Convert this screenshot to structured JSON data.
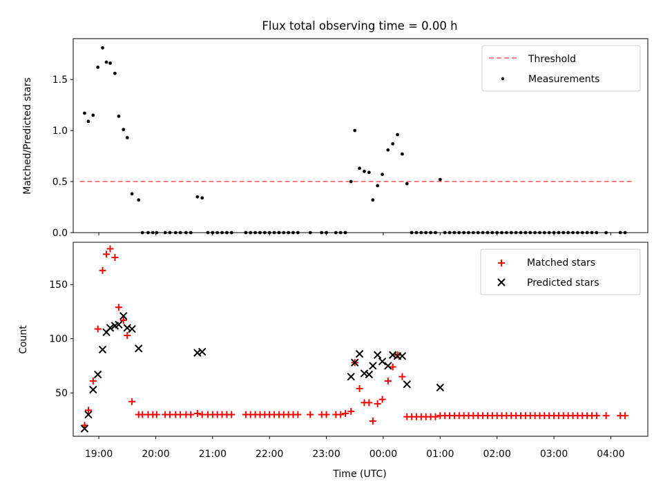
{
  "figure": {
    "title": "Flux total observing time = 0.00 h",
    "xlabel": "Time (UTC)"
  },
  "chart_data": [
    {
      "type": "scatter",
      "ylabel": "Matched/Predicted stars",
      "xlim": [
        "18:33",
        "04:39"
      ],
      "ylim": [
        0,
        1.9
      ],
      "yticks": [
        0.0,
        0.5,
        1.0,
        1.5
      ],
      "ytick_labels": [
        "0.0",
        "0.5",
        "1.0",
        "1.5"
      ],
      "xticks": [
        "19:00",
        "20:00",
        "21:00",
        "22:00",
        "23:00",
        "00:00",
        "01:00",
        "02:00",
        "03:00",
        "04:00"
      ],
      "legend": {
        "position": "upper right",
        "entries": [
          "Threshold",
          "Measurements"
        ]
      },
      "grid": false,
      "series": [
        {
          "name": "Threshold",
          "style": "dashed-line",
          "color": "#ff7f7f",
          "points": [
            [
              "18:40",
              0.5
            ],
            [
              "04:25",
              0.5
            ]
          ]
        },
        {
          "name": "Measurements",
          "style": "dot",
          "color": "#000000",
          "points": [
            [
              "18:45",
              1.17
            ],
            [
              "18:49",
              1.09
            ],
            [
              "18:54",
              1.15
            ],
            [
              "18:59",
              1.62
            ],
            [
              "19:04",
              1.81
            ],
            [
              "19:08",
              1.67
            ],
            [
              "19:12",
              1.66
            ],
            [
              "19:17",
              1.56
            ],
            [
              "19:21",
              1.14
            ],
            [
              "19:26",
              1.01
            ],
            [
              "19:30",
              0.93
            ],
            [
              "19:35",
              0.38
            ],
            [
              "19:42",
              0.32
            ],
            [
              "19:46",
              0.0
            ],
            [
              "19:52",
              0.0
            ],
            [
              "19:57",
              0.0
            ],
            [
              "20:01",
              0.0
            ],
            [
              "20:10",
              0.0
            ],
            [
              "20:15",
              0.0
            ],
            [
              "20:21",
              0.0
            ],
            [
              "20:26",
              0.0
            ],
            [
              "20:32",
              0.0
            ],
            [
              "20:37",
              0.0
            ],
            [
              "20:44",
              0.35
            ],
            [
              "20:49",
              0.34
            ],
            [
              "20:55",
              0.0
            ],
            [
              "21:00",
              0.0
            ],
            [
              "21:05",
              0.0
            ],
            [
              "21:10",
              0.0
            ],
            [
              "21:15",
              0.0
            ],
            [
              "21:20",
              0.0
            ],
            [
              "21:35",
              0.0
            ],
            [
              "21:40",
              0.0
            ],
            [
              "21:45",
              0.0
            ],
            [
              "21:50",
              0.0
            ],
            [
              "21:55",
              0.0
            ],
            [
              "22:00",
              0.0
            ],
            [
              "22:05",
              0.0
            ],
            [
              "22:10",
              0.0
            ],
            [
              "22:15",
              0.0
            ],
            [
              "22:20",
              0.0
            ],
            [
              "22:25",
              0.0
            ],
            [
              "22:30",
              0.0
            ],
            [
              "22:43",
              0.0
            ],
            [
              "22:55",
              0.0
            ],
            [
              "23:00",
              0.0
            ],
            [
              "23:10",
              0.0
            ],
            [
              "23:15",
              0.0
            ],
            [
              "23:20",
              0.0
            ],
            [
              "23:26",
              0.5
            ],
            [
              "23:30",
              1.0
            ],
            [
              "23:35",
              0.63
            ],
            [
              "23:40",
              0.6
            ],
            [
              "23:45",
              0.59
            ],
            [
              "23:49",
              0.32
            ],
            [
              "23:54",
              0.46
            ],
            [
              "23:59",
              0.57
            ],
            [
              "00:05",
              0.81
            ],
            [
              "00:10",
              0.87
            ],
            [
              "00:15",
              0.96
            ],
            [
              "00:20",
              0.77
            ],
            [
              "00:25",
              0.48
            ],
            [
              "00:30",
              0.0
            ],
            [
              "00:35",
              0.0
            ],
            [
              "00:40",
              0.0
            ],
            [
              "00:45",
              0.0
            ],
            [
              "00:50",
              0.0
            ],
            [
              "00:55",
              0.0
            ],
            [
              "01:00",
              0.52
            ],
            [
              "01:05",
              0.0
            ],
            [
              "01:10",
              0.0
            ],
            [
              "01:15",
              0.0
            ],
            [
              "01:20",
              0.0
            ],
            [
              "01:25",
              0.0
            ],
            [
              "01:30",
              0.0
            ],
            [
              "01:35",
              0.0
            ],
            [
              "01:40",
              0.0
            ],
            [
              "01:45",
              0.0
            ],
            [
              "01:50",
              0.0
            ],
            [
              "01:55",
              0.0
            ],
            [
              "02:00",
              0.0
            ],
            [
              "02:05",
              0.0
            ],
            [
              "02:10",
              0.0
            ],
            [
              "02:15",
              0.0
            ],
            [
              "02:20",
              0.0
            ],
            [
              "02:25",
              0.0
            ],
            [
              "02:30",
              0.0
            ],
            [
              "02:35",
              0.0
            ],
            [
              "02:40",
              0.0
            ],
            [
              "02:45",
              0.0
            ],
            [
              "02:50",
              0.0
            ],
            [
              "02:55",
              0.0
            ],
            [
              "03:00",
              0.0
            ],
            [
              "03:05",
              0.0
            ],
            [
              "03:10",
              0.0
            ],
            [
              "03:15",
              0.0
            ],
            [
              "03:20",
              0.0
            ],
            [
              "03:25",
              0.0
            ],
            [
              "03:30",
              0.0
            ],
            [
              "03:35",
              0.0
            ],
            [
              "03:40",
              0.0
            ],
            [
              "03:45",
              0.0
            ],
            [
              "03:55",
              0.0
            ],
            [
              "04:10",
              0.0
            ],
            [
              "04:15",
              0.0
            ]
          ]
        }
      ]
    },
    {
      "type": "scatter",
      "ylabel": "Count",
      "xlabel": "Time (UTC)",
      "xlim": [
        "18:33",
        "04:39"
      ],
      "ylim": [
        10,
        189
      ],
      "yticks": [
        50,
        100,
        150
      ],
      "ytick_labels": [
        "50",
        "100",
        "150"
      ],
      "xticks": [
        "19:00",
        "20:00",
        "21:00",
        "22:00",
        "23:00",
        "00:00",
        "01:00",
        "02:00",
        "03:00",
        "04:00"
      ],
      "legend": {
        "position": "upper right",
        "entries": [
          "Matched stars",
          "Predicted stars"
        ]
      },
      "grid": false,
      "series": [
        {
          "name": "Matched stars",
          "marker": "plus",
          "color": "#ff0000",
          "points": [
            [
              "18:45",
              20
            ],
            [
              "18:49",
              34
            ],
            [
              "18:54",
              61
            ],
            [
              "18:59",
              109
            ],
            [
              "19:04",
              163
            ],
            [
              "19:08",
              178
            ],
            [
              "19:12",
              183
            ],
            [
              "19:17",
              175
            ],
            [
              "19:21",
              129
            ],
            [
              "19:26",
              117
            ],
            [
              "19:30",
              103
            ],
            [
              "19:35",
              42
            ],
            [
              "19:42",
              30
            ],
            [
              "19:46",
              30
            ],
            [
              "19:52",
              30
            ],
            [
              "19:57",
              30
            ],
            [
              "20:01",
              30
            ],
            [
              "20:10",
              30
            ],
            [
              "20:15",
              30
            ],
            [
              "20:21",
              30
            ],
            [
              "20:26",
              30
            ],
            [
              "20:32",
              30
            ],
            [
              "20:37",
              30
            ],
            [
              "20:44",
              31
            ],
            [
              "20:49",
              30
            ],
            [
              "20:55",
              30
            ],
            [
              "21:00",
              30
            ],
            [
              "21:05",
              30
            ],
            [
              "21:10",
              30
            ],
            [
              "21:15",
              30
            ],
            [
              "21:20",
              30
            ],
            [
              "21:35",
              30
            ],
            [
              "21:40",
              30
            ],
            [
              "21:45",
              30
            ],
            [
              "21:50",
              30
            ],
            [
              "21:55",
              30
            ],
            [
              "22:00",
              30
            ],
            [
              "22:05",
              30
            ],
            [
              "22:10",
              30
            ],
            [
              "22:15",
              30
            ],
            [
              "22:20",
              30
            ],
            [
              "22:25",
              30
            ],
            [
              "22:30",
              30
            ],
            [
              "22:43",
              30
            ],
            [
              "22:55",
              30
            ],
            [
              "23:00",
              30
            ],
            [
              "23:10",
              30
            ],
            [
              "23:15",
              30
            ],
            [
              "23:20",
              31
            ],
            [
              "23:26",
              33
            ],
            [
              "23:30",
              78
            ],
            [
              "23:35",
              54
            ],
            [
              "23:40",
              41
            ],
            [
              "23:45",
              41
            ],
            [
              "23:49",
              24
            ],
            [
              "23:54",
              40
            ],
            [
              "23:59",
              44
            ],
            [
              "00:05",
              61
            ],
            [
              "00:10",
              74
            ],
            [
              "00:15",
              85
            ],
            [
              "00:20",
              65
            ],
            [
              "00:25",
              28
            ],
            [
              "00:30",
              28
            ],
            [
              "00:35",
              28
            ],
            [
              "00:40",
              28
            ],
            [
              "00:45",
              28
            ],
            [
              "00:50",
              28
            ],
            [
              "00:55",
              28
            ],
            [
              "01:00",
              29
            ],
            [
              "01:05",
              29
            ],
            [
              "01:10",
              29
            ],
            [
              "01:15",
              29
            ],
            [
              "01:20",
              29
            ],
            [
              "01:25",
              29
            ],
            [
              "01:30",
              29
            ],
            [
              "01:35",
              29
            ],
            [
              "01:40",
              29
            ],
            [
              "01:45",
              29
            ],
            [
              "01:50",
              29
            ],
            [
              "01:55",
              29
            ],
            [
              "02:00",
              29
            ],
            [
              "02:05",
              29
            ],
            [
              "02:10",
              29
            ],
            [
              "02:15",
              29
            ],
            [
              "02:20",
              29
            ],
            [
              "02:25",
              29
            ],
            [
              "02:30",
              29
            ],
            [
              "02:35",
              29
            ],
            [
              "02:40",
              29
            ],
            [
              "02:45",
              29
            ],
            [
              "02:50",
              29
            ],
            [
              "02:55",
              29
            ],
            [
              "03:00",
              29
            ],
            [
              "03:05",
              29
            ],
            [
              "03:10",
              29
            ],
            [
              "03:15",
              29
            ],
            [
              "03:20",
              29
            ],
            [
              "03:25",
              29
            ],
            [
              "03:30",
              29
            ],
            [
              "03:35",
              29
            ],
            [
              "03:40",
              29
            ],
            [
              "03:45",
              29
            ],
            [
              "03:55",
              29
            ],
            [
              "04:10",
              29
            ],
            [
              "04:15",
              29
            ]
          ]
        },
        {
          "name": "Predicted stars",
          "marker": "x",
          "color": "#000000",
          "points": [
            [
              "18:45",
              17
            ],
            [
              "18:49",
              30
            ],
            [
              "18:54",
              53
            ],
            [
              "18:59",
              67
            ],
            [
              "19:04",
              90
            ],
            [
              "19:08",
              106
            ],
            [
              "19:12",
              110
            ],
            [
              "19:17",
              112
            ],
            [
              "19:21",
              113
            ],
            [
              "19:26",
              121
            ],
            [
              "19:30",
              110
            ],
            [
              "19:35",
              109
            ],
            [
              "19:42",
              91
            ],
            [
              "20:44",
              87
            ],
            [
              "20:49",
              88
            ],
            [
              "23:26",
              65
            ],
            [
              "23:30",
              78
            ],
            [
              "23:35",
              86
            ],
            [
              "23:40",
              68
            ],
            [
              "23:45",
              67
            ],
            [
              "23:49",
              75
            ],
            [
              "23:54",
              85
            ],
            [
              "23:59",
              79
            ],
            [
              "00:05",
              75
            ],
            [
              "00:10",
              85
            ],
            [
              "00:15",
              84
            ],
            [
              "00:20",
              84
            ],
            [
              "00:25",
              58
            ],
            [
              "01:00",
              55
            ]
          ]
        }
      ]
    }
  ]
}
